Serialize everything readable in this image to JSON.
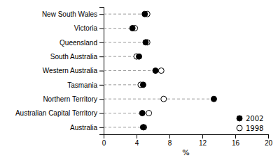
{
  "chart_data": {
    "type": "dot",
    "xlabel": "%",
    "categories": [
      "New South Wales",
      "Victoria",
      "Queensland",
      "South Australia",
      "Western Australia",
      "Tasmania",
      "Northern Territory",
      "Australian Capital Territory",
      "Australia"
    ],
    "series": [
      {
        "name": "2002",
        "color": "#000000",
        "values": [
          5.0,
          3.5,
          5.1,
          4.3,
          6.3,
          4.8,
          13.4,
          4.7,
          4.8
        ]
      },
      {
        "name": "1998",
        "color": "#ffffff",
        "values": [
          5.3,
          3.8,
          5.3,
          4.0,
          7.0,
          4.5,
          7.3,
          5.5,
          4.9
        ]
      }
    ],
    "color": "#999999",
    "line_style": "dashed",
    "xlim": [
      0,
      20
    ],
    "xticks": [
      0,
      4,
      8,
      12,
      16,
      20
    ],
    "legend": "lower right"
  }
}
